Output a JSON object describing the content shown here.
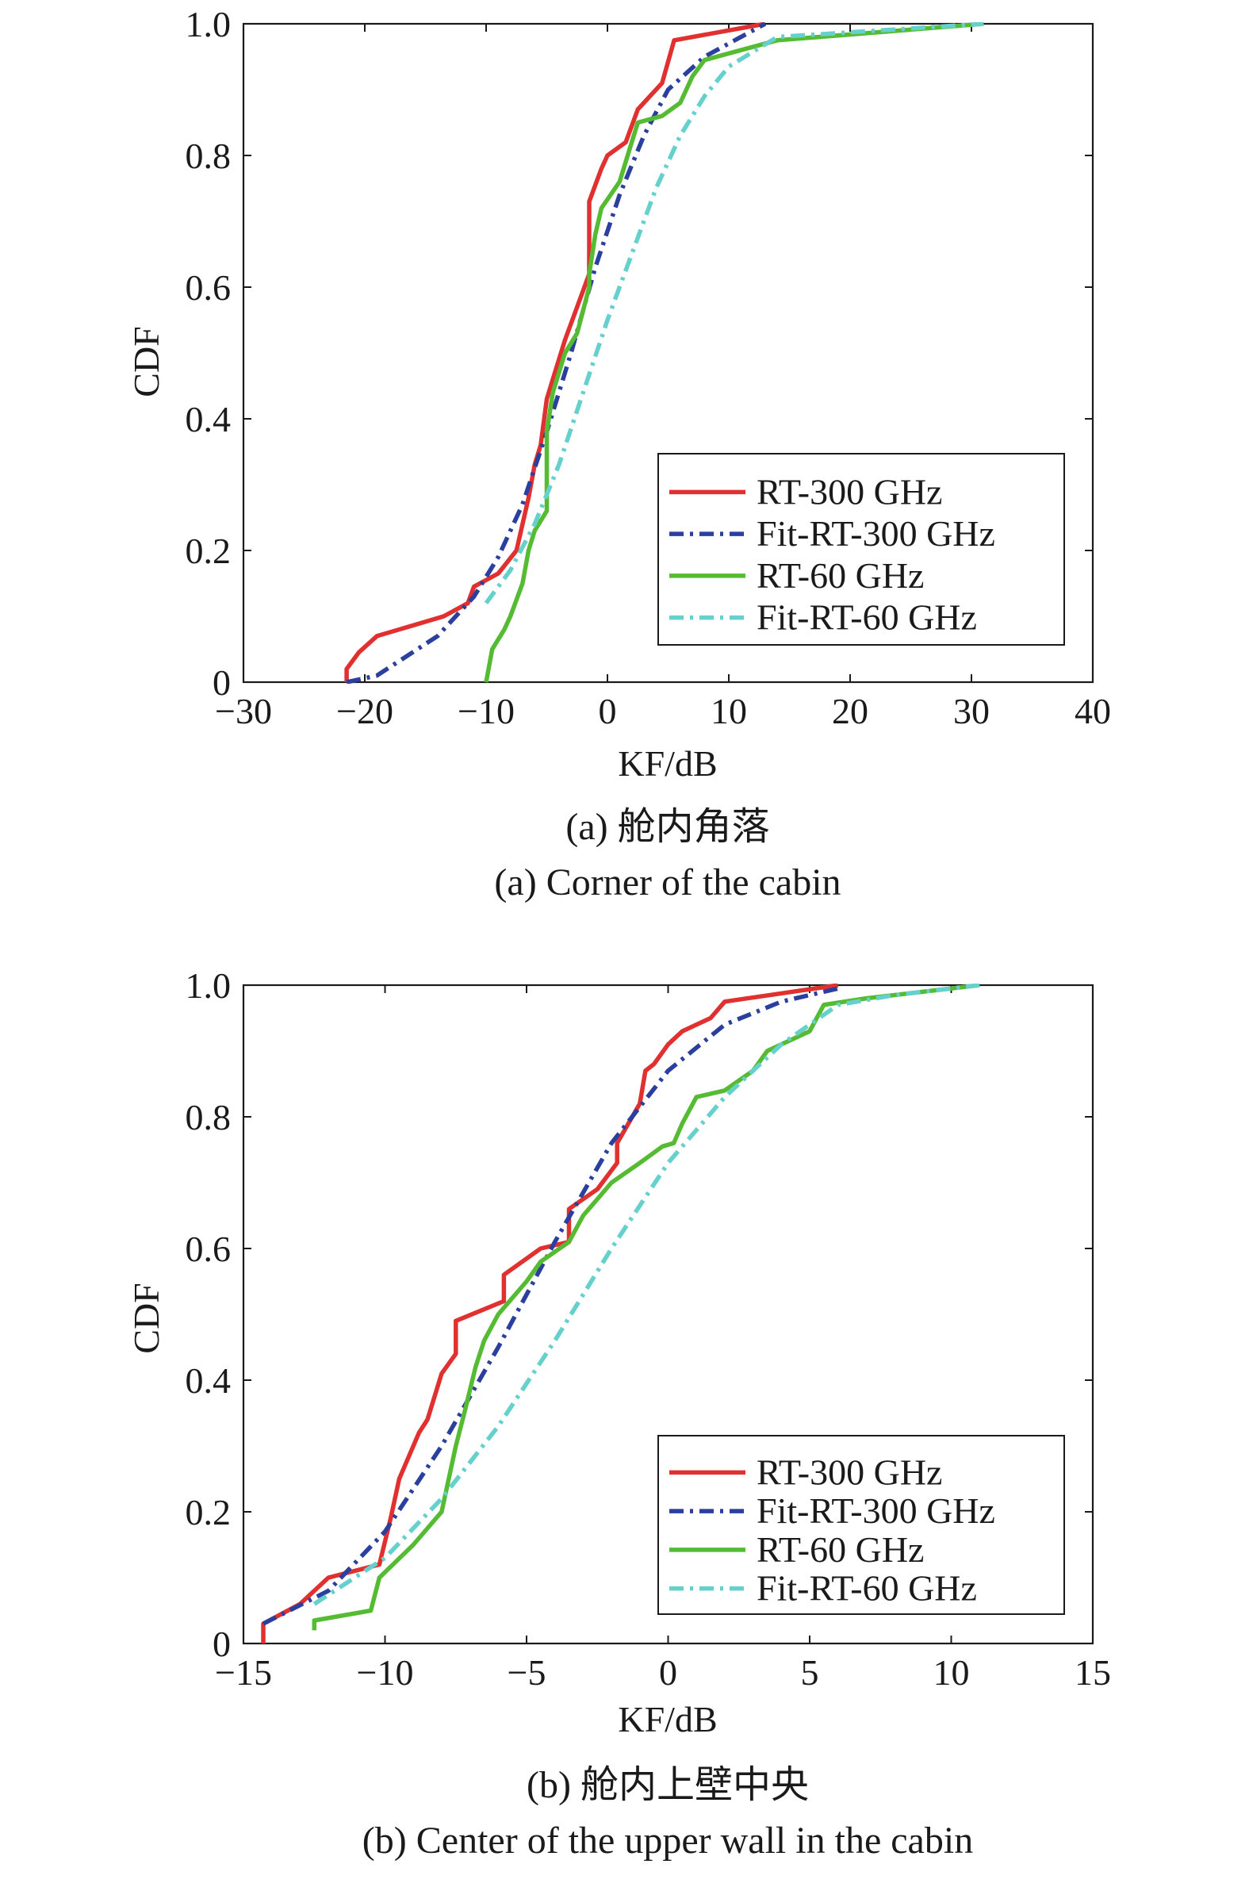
{
  "chart_data": [
    {
      "type": "line",
      "caption_cn": "(a) 舱内角落",
      "caption_en": "(a) Corner of the cabin",
      "xlabel": "KF/dB",
      "ylabel": "CDF",
      "xlim": [
        -30,
        40
      ],
      "ylim": [
        0,
        1.0
      ],
      "x_ticks": [
        -30,
        -20,
        -10,
        0,
        10,
        20,
        30,
        40
      ],
      "x_tick_labels": [
        "−30",
        "−20",
        "−10",
        "0",
        "10",
        "20",
        "30",
        "40"
      ],
      "y_ticks": [
        0,
        0.2,
        0.4,
        0.6,
        0.8,
        1.0
      ],
      "y_tick_labels": [
        "0",
        "0.2",
        "0.4",
        "0.6",
        "0.8",
        "1.0"
      ],
      "legend_position": "lower-right",
      "grid": false,
      "series": [
        {
          "name": "RT-300 GHz",
          "color": "#e03030",
          "dash": "solid",
          "points": [
            [
              -21.5,
              0
            ],
            [
              -21.5,
              0.02
            ],
            [
              -20.5,
              0.045
            ],
            [
              -19,
              0.07
            ],
            [
              -13.5,
              0.1
            ],
            [
              -11.5,
              0.12
            ],
            [
              -11,
              0.145
            ],
            [
              -9,
              0.165
            ],
            [
              -7.5,
              0.2
            ],
            [
              -7,
              0.24
            ],
            [
              -6.5,
              0.28
            ],
            [
              -6,
              0.33
            ],
            [
              -5.5,
              0.36
            ],
            [
              -5,
              0.43
            ],
            [
              -4.5,
              0.46
            ],
            [
              -3.5,
              0.52
            ],
            [
              -2.5,
              0.57
            ],
            [
              -1.5,
              0.62
            ],
            [
              -1.5,
              0.73
            ],
            [
              -0.5,
              0.78
            ],
            [
              0,
              0.8
            ],
            [
              1.5,
              0.82
            ],
            [
              2.5,
              0.87
            ],
            [
              3.5,
              0.89
            ],
            [
              4.5,
              0.91
            ],
            [
              5.5,
              0.975
            ],
            [
              13,
              1.0
            ]
          ]
        },
        {
          "name": "Fit-RT-300 GHz",
          "color": "#2b3f9e",
          "dash": "dashdot",
          "points": [
            [
              -21.5,
              0
            ],
            [
              -19,
              0.01
            ],
            [
              -14,
              0.07
            ],
            [
              -11,
              0.13
            ],
            [
              -9,
              0.19
            ],
            [
              -7,
              0.27
            ],
            [
              -5,
              0.38
            ],
            [
              -3,
              0.5
            ],
            [
              -1,
              0.63
            ],
            [
              1,
              0.74
            ],
            [
              3,
              0.83
            ],
            [
              5,
              0.9
            ],
            [
              8,
              0.95
            ],
            [
              13,
              1.0
            ]
          ]
        },
        {
          "name": "RT-60 GHz",
          "color": "#55bb33",
          "dash": "solid",
          "points": [
            [
              -10,
              0
            ],
            [
              -9.5,
              0.05
            ],
            [
              -8.5,
              0.08
            ],
            [
              -8,
              0.1
            ],
            [
              -7,
              0.15
            ],
            [
              -6.5,
              0.2
            ],
            [
              -6,
              0.23
            ],
            [
              -5,
              0.26
            ],
            [
              -5,
              0.38
            ],
            [
              -4.5,
              0.44
            ],
            [
              -3.5,
              0.5
            ],
            [
              -2.5,
              0.53
            ],
            [
              -1.5,
              0.6
            ],
            [
              -1.5,
              0.62
            ],
            [
              -1,
              0.68
            ],
            [
              -0.5,
              0.72
            ],
            [
              1,
              0.76
            ],
            [
              2,
              0.82
            ],
            [
              2.5,
              0.85
            ],
            [
              4.5,
              0.86
            ],
            [
              6,
              0.88
            ],
            [
              7,
              0.92
            ],
            [
              8,
              0.945
            ],
            [
              11,
              0.96
            ],
            [
              14,
              0.975
            ],
            [
              31,
              1.0
            ]
          ]
        },
        {
          "name": "Fit-RT-60 GHz",
          "color": "#66d0cc",
          "dash": "dashdot",
          "points": [
            [
              -10,
              0.12
            ],
            [
              -8,
              0.17
            ],
            [
              -6,
              0.24
            ],
            [
              -4,
              0.33
            ],
            [
              -2,
              0.44
            ],
            [
              0,
              0.55
            ],
            [
              2,
              0.65
            ],
            [
              4,
              0.75
            ],
            [
              6,
              0.83
            ],
            [
              8,
              0.89
            ],
            [
              10,
              0.935
            ],
            [
              14,
              0.98
            ],
            [
              31,
              1.0
            ]
          ]
        }
      ]
    },
    {
      "type": "line",
      "caption_cn": "(b) 舱内上壁中央",
      "caption_en": "(b) Center of the upper wall in the cabin",
      "xlabel": "KF/dB",
      "ylabel": "CDF",
      "xlim": [
        -15,
        15
      ],
      "ylim": [
        0,
        1.0
      ],
      "x_ticks": [
        -15,
        -10,
        -5,
        0,
        5,
        10,
        15
      ],
      "x_tick_labels": [
        "−15",
        "−10",
        "−5",
        "0",
        "5",
        "10",
        "15"
      ],
      "y_ticks": [
        0,
        0.2,
        0.4,
        0.6,
        0.8,
        1.0
      ],
      "y_tick_labels": [
        "0",
        "0.2",
        "0.4",
        "0.6",
        "0.8",
        "1.0"
      ],
      "legend_position": "lower-right",
      "grid": false,
      "series": [
        {
          "name": "RT-300 GHz",
          "color": "#e03030",
          "dash": "solid",
          "points": [
            [
              -14.3,
              0
            ],
            [
              -14.3,
              0.03
            ],
            [
              -13,
              0.06
            ],
            [
              -12,
              0.1
            ],
            [
              -10.2,
              0.12
            ],
            [
              -9.8,
              0.19
            ],
            [
              -9.5,
              0.25
            ],
            [
              -9.2,
              0.28
            ],
            [
              -8.8,
              0.32
            ],
            [
              -8.5,
              0.34
            ],
            [
              -8,
              0.41
            ],
            [
              -7.5,
              0.44
            ],
            [
              -7.5,
              0.49
            ],
            [
              -5.8,
              0.52
            ],
            [
              -5.8,
              0.56
            ],
            [
              -4.5,
              0.6
            ],
            [
              -3.5,
              0.61
            ],
            [
              -3.5,
              0.66
            ],
            [
              -2.5,
              0.69
            ],
            [
              -1.8,
              0.73
            ],
            [
              -1.8,
              0.76
            ],
            [
              -1,
              0.82
            ],
            [
              -0.8,
              0.87
            ],
            [
              -0.5,
              0.88
            ],
            [
              0,
              0.91
            ],
            [
              0.5,
              0.93
            ],
            [
              1.5,
              0.95
            ],
            [
              2,
              0.975
            ],
            [
              6,
              1.0
            ]
          ]
        },
        {
          "name": "Fit-RT-300 GHz",
          "color": "#2b3f9e",
          "dash": "dashdot",
          "points": [
            [
              -14.3,
              0.03
            ],
            [
              -12,
              0.08
            ],
            [
              -10,
              0.17
            ],
            [
              -8,
              0.3
            ],
            [
              -6,
              0.45
            ],
            [
              -4,
              0.61
            ],
            [
              -2,
              0.76
            ],
            [
              0,
              0.87
            ],
            [
              2,
              0.94
            ],
            [
              4,
              0.975
            ],
            [
              6,
              0.995
            ]
          ]
        },
        {
          "name": "RT-60 GHz",
          "color": "#55bb33",
          "dash": "solid",
          "points": [
            [
              -12.5,
              0.02
            ],
            [
              -12.5,
              0.035
            ],
            [
              -10.5,
              0.05
            ],
            [
              -10.2,
              0.1
            ],
            [
              -9,
              0.15
            ],
            [
              -8,
              0.2
            ],
            [
              -7.5,
              0.3
            ],
            [
              -7.2,
              0.35
            ],
            [
              -6.8,
              0.42
            ],
            [
              -6.5,
              0.46
            ],
            [
              -6,
              0.5
            ],
            [
              -5,
              0.55
            ],
            [
              -4.5,
              0.58
            ],
            [
              -3.5,
              0.61
            ],
            [
              -3,
              0.65
            ],
            [
              -2,
              0.7
            ],
            [
              -1,
              0.73
            ],
            [
              -0.2,
              0.755
            ],
            [
              0.2,
              0.76
            ],
            [
              0.5,
              0.79
            ],
            [
              1,
              0.83
            ],
            [
              2,
              0.84
            ],
            [
              3,
              0.87
            ],
            [
              3.5,
              0.9
            ],
            [
              5,
              0.93
            ],
            [
              5.5,
              0.97
            ],
            [
              7,
              0.98
            ],
            [
              11,
              1.0
            ]
          ]
        },
        {
          "name": "Fit-RT-60 GHz",
          "color": "#66d0cc",
          "dash": "dashdot",
          "points": [
            [
              -12.5,
              0.06
            ],
            [
              -10,
              0.13
            ],
            [
              -8,
              0.22
            ],
            [
              -6,
              0.33
            ],
            [
              -4,
              0.46
            ],
            [
              -2,
              0.6
            ],
            [
              0,
              0.73
            ],
            [
              2,
              0.83
            ],
            [
              4,
              0.91
            ],
            [
              6,
              0.97
            ],
            [
              8,
              0.985
            ],
            [
              11,
              1.0
            ]
          ]
        }
      ]
    }
  ]
}
